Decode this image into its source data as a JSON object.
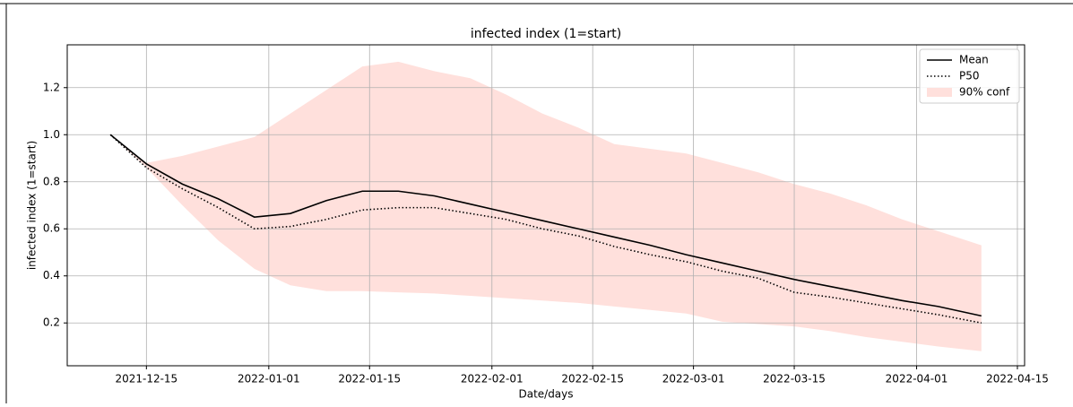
{
  "chart_data": {
    "type": "line",
    "title": "infected index (1=start)",
    "xlabel": "Date/days",
    "ylabel": "infected index (1=start)",
    "x": [
      "2021-12-10",
      "2021-12-15",
      "2021-12-20",
      "2021-12-25",
      "2021-12-30",
      "2022-01-04",
      "2022-01-09",
      "2022-01-14",
      "2022-01-19",
      "2022-01-24",
      "2022-01-29",
      "2022-02-03",
      "2022-02-08",
      "2022-02-13",
      "2022-02-18",
      "2022-02-23",
      "2022-02-28",
      "2022-03-05",
      "2022-03-10",
      "2022-03-15",
      "2022-03-20",
      "2022-03-25",
      "2022-03-30",
      "2022-04-04",
      "2022-04-10"
    ],
    "series": [
      {
        "name": "Mean",
        "color": "#000000",
        "style": "solid",
        "values": [
          1.0,
          0.876,
          0.79,
          0.727,
          0.65,
          0.665,
          0.72,
          0.76,
          0.76,
          0.74,
          0.705,
          0.67,
          0.635,
          0.6,
          0.565,
          0.53,
          0.49,
          0.455,
          0.42,
          0.385,
          0.355,
          0.325,
          0.295,
          0.27,
          0.23
        ]
      },
      {
        "name": "P50",
        "color": "#000000",
        "style": "dotted",
        "values": [
          1.0,
          0.86,
          0.77,
          0.69,
          0.6,
          0.61,
          0.64,
          0.68,
          0.69,
          0.69,
          0.665,
          0.64,
          0.6,
          0.57,
          0.525,
          0.49,
          0.46,
          0.42,
          0.39,
          0.33,
          0.31,
          0.285,
          0.26,
          0.235,
          0.2
        ]
      }
    ],
    "band": {
      "name": "90% conf",
      "color": "#ffe0dc",
      "lower": [
        1.0,
        0.86,
        0.7,
        0.55,
        0.43,
        0.36,
        0.335,
        0.335,
        0.33,
        0.325,
        0.315,
        0.305,
        0.295,
        0.285,
        0.27,
        0.255,
        0.24,
        0.205,
        0.195,
        0.185,
        0.165,
        0.14,
        0.12,
        0.1,
        0.08
      ],
      "upper": [
        1.0,
        0.88,
        0.91,
        0.95,
        0.99,
        1.09,
        1.19,
        1.29,
        1.31,
        1.27,
        1.24,
        1.17,
        1.09,
        1.03,
        0.96,
        0.94,
        0.92,
        0.88,
        0.84,
        0.79,
        0.75,
        0.7,
        0.64,
        0.59,
        0.53
      ]
    },
    "xlim": [
      "2021-12-04",
      "2022-04-16"
    ],
    "xticks": [
      "2021-12-15",
      "2022-01-01",
      "2022-01-15",
      "2022-02-01",
      "2022-02-15",
      "2022-03-01",
      "2022-03-15",
      "2022-04-01",
      "2022-04-15"
    ],
    "ylim": [
      0.018,
      1.382
    ],
    "yticks": [
      0.2,
      0.4,
      0.6,
      0.8,
      {
        "value": 1,
        "label": "1.0"
      },
      1.2
    ],
    "grid": true,
    "legend": "upper right"
  }
}
